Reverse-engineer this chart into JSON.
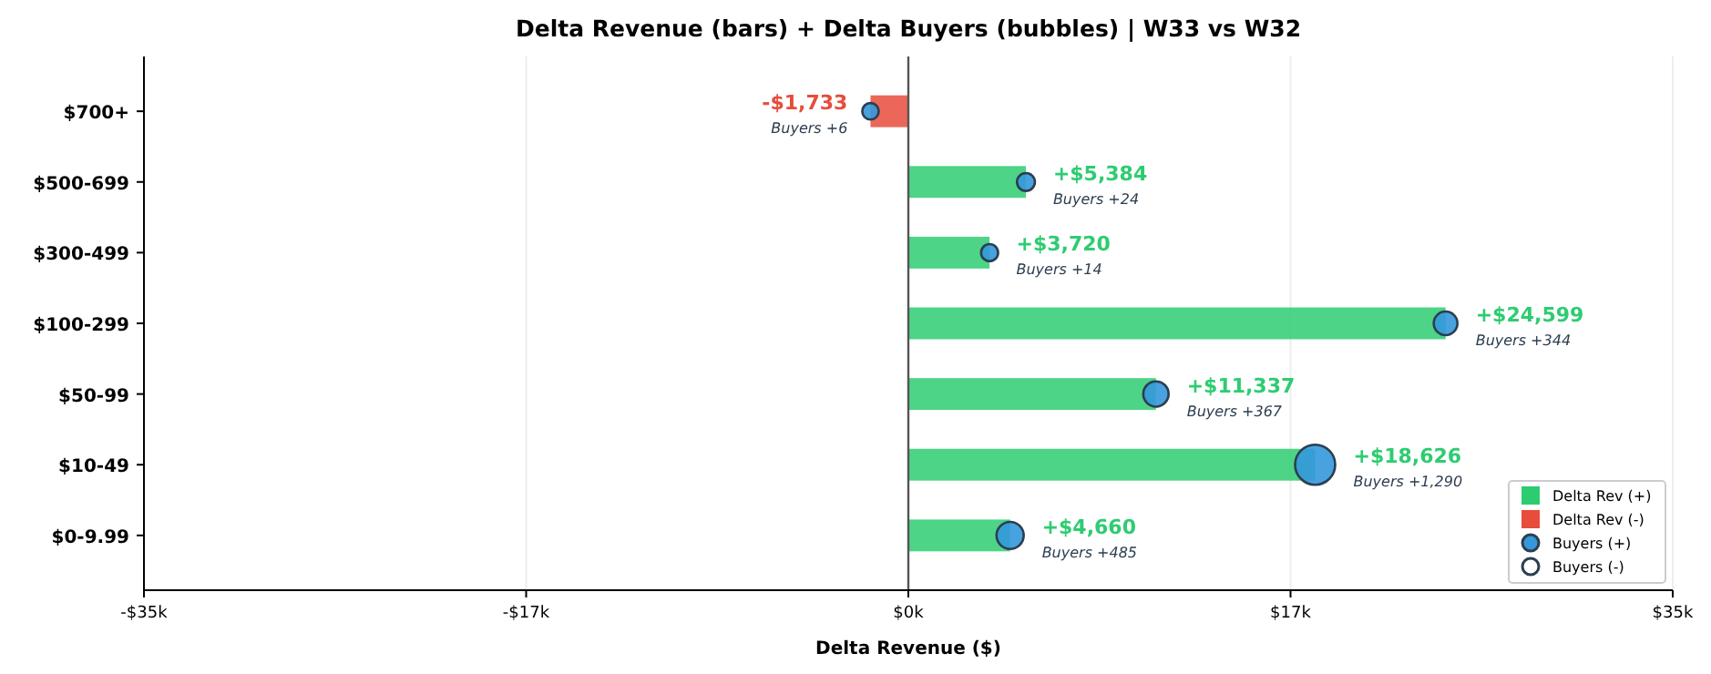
{
  "chart_data": {
    "type": "bar",
    "orientation": "horizontal",
    "title": "Delta Revenue (bars) + Delta Buyers (bubbles) | W33 vs W32",
    "xlabel": "Delta Revenue ($)",
    "categories": [
      "$700+",
      "$500-699",
      "$300-499",
      "$100-299",
      "$50-99",
      "$10-49",
      "$0-9.99"
    ],
    "xlim": [
      -35000,
      35000
    ],
    "xticks": [
      {
        "value": -35000,
        "label": "-$35k"
      },
      {
        "value": -17500,
        "label": "-$17k"
      },
      {
        "value": 0,
        "label": "$0k"
      },
      {
        "value": 17500,
        "label": "$17k"
      },
      {
        "value": 35000,
        "label": "$35k"
      }
    ],
    "grid": "x",
    "legend": "bottom right",
    "annotations": [
      {
        "text": "Buyers +6",
        "x": -1733,
        "y": "$700+"
      },
      {
        "text": "Buyers +24",
        "x": 5384,
        "y": "$500-699"
      },
      {
        "text": "Buyers +14",
        "x": 3720,
        "y": "$300-499"
      },
      {
        "text": "Buyers +344",
        "x": 24599,
        "y": "$100-299"
      },
      {
        "text": "Buyers +367",
        "x": 11337,
        "y": "$50-99"
      },
      {
        "text": "Buyers +1,290",
        "x": 18626,
        "y": "$10-49"
      },
      {
        "text": "Buyers +485",
        "x": 4660,
        "y": "$0-9.99"
      }
    ],
    "ref_lines": [
      {
        "axis": "x",
        "value": 0,
        "color": "#555555"
      }
    ],
    "series": [
      {
        "name": "Delta Rev (+)",
        "color": "#2ecc71",
        "values": [
          null,
          5384,
          3720,
          24599,
          11337,
          18626,
          4660
        ],
        "value_labels": [
          null,
          "+$5,384",
          "+$3,720",
          "+$24,599",
          "+$11,337",
          "+$18,626",
          "+$4,660"
        ]
      },
      {
        "name": "Delta Rev (-)",
        "color": "#e74c3c",
        "values": [
          -1733,
          null,
          null,
          null,
          null,
          null,
          null
        ],
        "value_labels": [
          "-$1,733",
          null,
          null,
          null,
          null,
          null,
          null
        ]
      },
      {
        "type": "bubble",
        "name": "Buyers (+)",
        "color": "#3498db",
        "values": [
          -1733,
          5384,
          3720,
          24599,
          11337,
          18626,
          4660
        ],
        "sizes": [
          0.17,
          0.2,
          0.18,
          0.35,
          0.4,
          1,
          0.46
        ]
      },
      {
        "type": "bubble",
        "name": "Buyers (-)",
        "color": "#ffffff",
        "values": [
          null,
          null,
          null,
          null,
          null,
          null,
          null
        ],
        "sizes": [
          null,
          null,
          null,
          null,
          null,
          null,
          null
        ]
      }
    ]
  }
}
